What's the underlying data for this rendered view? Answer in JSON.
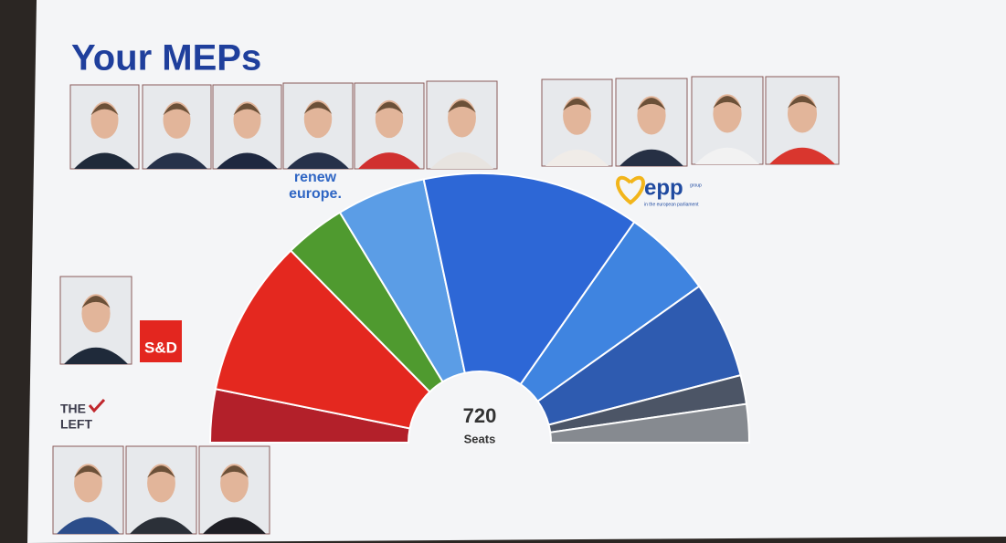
{
  "title": "Your MEPs",
  "logos": {
    "renew": [
      "renew",
      "europe."
    ],
    "epp": "epp",
    "epp_sub": [
      "group",
      "in the european parliament"
    ],
    "sd": "S&D",
    "left": [
      "THE",
      "LEFT"
    ]
  },
  "hemicycle": {
    "total": 720,
    "total_label": "Seats",
    "segments": [
      {
        "seats": 46,
        "color": "#b3202a"
      },
      {
        "seats": 136,
        "color": "#e4281f"
      },
      {
        "seats": 53,
        "color": "#4f9a2f"
      },
      {
        "seats": 77,
        "color": "#5b9de6"
      },
      {
        "seats": 188,
        "color": "#2d67d6"
      },
      {
        "seats": 78,
        "color": "#3f84e0"
      },
      {
        "seats": 84,
        "color": "#2e5bb0"
      },
      {
        "seats": 25,
        "color": "#4c5566"
      },
      {
        "seats": 33,
        "color": "#868a90"
      }
    ]
  }
}
